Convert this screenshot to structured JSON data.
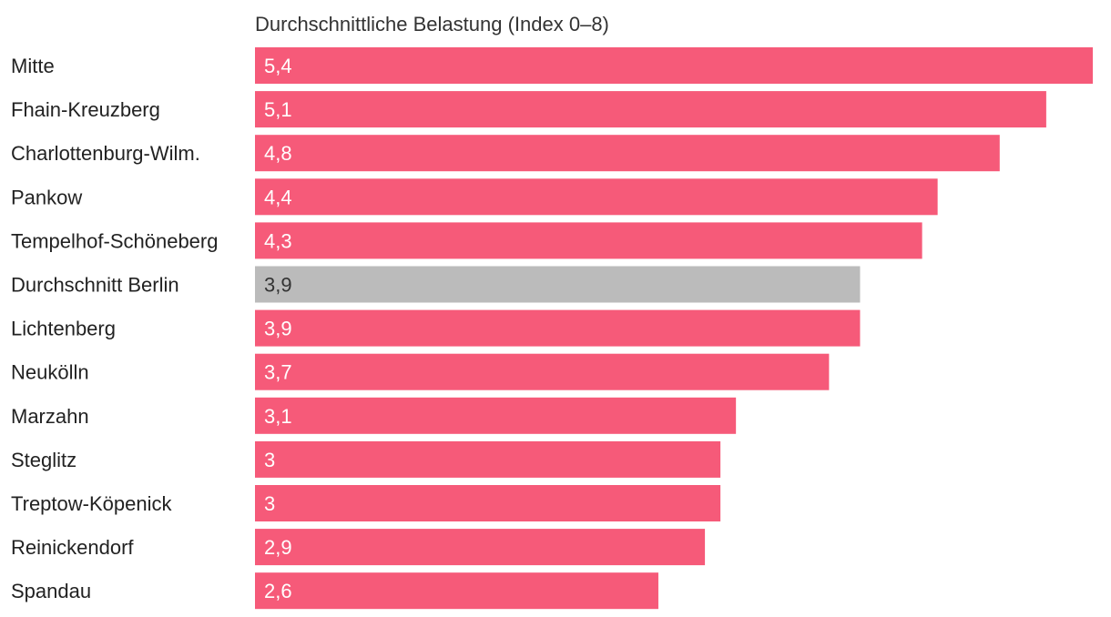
{
  "chart_data": {
    "type": "bar",
    "orientation": "horizontal",
    "title": "Durchschnittliche Belastung (Index 0–8)",
    "xlabel": "",
    "ylabel": "",
    "xlim": [
      0,
      5.4
    ],
    "grid": false,
    "legend": "none",
    "colors": {
      "default": "#F65A79",
      "highlight": "#BBBBBB",
      "label_on_default": "#FFFFFF",
      "label_on_highlight": "#333333"
    },
    "categories": [
      "Mitte",
      "Fhain-Kreuzberg",
      "Charlottenburg-Wilm.",
      "Pankow",
      "Tempelhof-Schöneberg",
      "Durchschnitt Berlin",
      "Lichtenberg",
      "Neukölln",
      "Marzahn",
      "Steglitz",
      "Treptow-Köpenick",
      "Reinickendorf",
      "Spandau"
    ],
    "values": [
      5.4,
      5.1,
      4.8,
      4.4,
      4.3,
      3.9,
      3.9,
      3.7,
      3.1,
      3.0,
      3.0,
      2.9,
      2.6
    ],
    "value_labels": [
      "5,4",
      "5,1",
      "4,8",
      "4,4",
      "4,3",
      "3,9",
      "3,9",
      "3,7",
      "3,1",
      "3",
      "3",
      "2,9",
      "2,6"
    ],
    "highlight_category": "Durchschnitt Berlin"
  }
}
